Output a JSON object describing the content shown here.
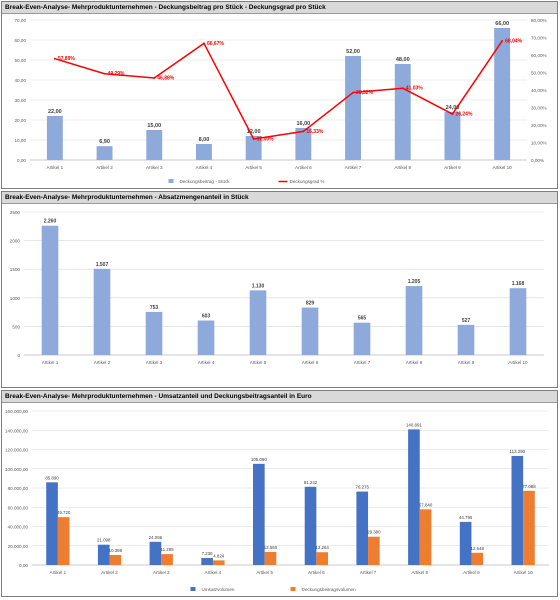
{
  "chart_data": [
    {
      "type": "bar",
      "title": "Break-Even-Analyse- Mehrproduktunternehmen - Deckungsbeitrag pro Stück - Deckungsgrad pro Stück",
      "categories": [
        "Artikel 1",
        "Artikel 2",
        "Artikel 3",
        "Artikel 4",
        "Artikel 5",
        "Artikel 6",
        "Artikel 7",
        "Artikel 8",
        "Artikel 9",
        "Artikel 10"
      ],
      "y_ticks": [
        "0,00",
        "10,00",
        "20,00",
        "30,00",
        "40,00",
        "50,00",
        "60,00",
        "70,00"
      ],
      "y2_ticks": [
        "0,00%",
        "10,00%",
        "20,00%",
        "30,00%",
        "40,00%",
        "50,00%",
        "60,00%",
        "70,00%",
        "80,00%"
      ],
      "ylim": [
        0,
        70
      ],
      "y2lim": [
        0,
        80
      ],
      "series": [
        {
          "name": "Deckungsbeitrag - Stück",
          "type": "bar",
          "color": "#8eaadb",
          "values": [
            22,
            6.9,
            15,
            8,
            12,
            16,
            52,
            48,
            24,
            66
          ],
          "labels": [
            "22,00",
            "6,90",
            "15,00",
            "8,00",
            "12,00",
            "16,00",
            "52,00",
            "48,00",
            "24,00",
            "66,00"
          ]
        },
        {
          "name": "Deckungsgrad %",
          "type": "line",
          "color": "#ff0000",
          "values": [
            57.89,
            49.29,
            46.88,
            66.67,
            12,
            16.33,
            38.52,
            41.03,
            26.24,
            68.04
          ],
          "labels": [
            "57,89%",
            "49,29%",
            "46,88%",
            "66,67%",
            "12,00%",
            "16,33%",
            "38,52%",
            "41,03%",
            "26,24%",
            "68,04%"
          ]
        }
      ]
    },
    {
      "type": "bar",
      "title": "Break-Even-Analyse- Mehrproduktunternehmen - Absatzmengenanteil in Stück",
      "categories": [
        "Artikel 1",
        "Artikel 2",
        "Artikel 3",
        "Artikel 4",
        "Artikel 5",
        "Artikel 6",
        "Artikel 7",
        "Artikel 8",
        "Artikel 9",
        "Artikel 10"
      ],
      "y_ticks": [
        "0",
        "500",
        "1000",
        "1500",
        "2000",
        "2500"
      ],
      "ylim": [
        0,
        2500
      ],
      "series": [
        {
          "type": "bar",
          "color": "#8eaadb",
          "values": [
            2260,
            1507,
            753,
            603,
            1130,
            829,
            565,
            1205,
            527,
            1168
          ],
          "labels": [
            "2.260",
            "1.507",
            "753",
            "603",
            "1.130",
            "829",
            "565",
            "1.205",
            "527",
            "1.168"
          ]
        }
      ]
    },
    {
      "type": "bar",
      "title": "Break-Even-Analyse- Mehrproduktunternehmen - Umsatzanteil und Deckungsbeitragsanteil in Euro",
      "categories": [
        "Artikel 1",
        "Artikel 2",
        "Artikel 3",
        "Artikel 4",
        "Artikel 5",
        "Artikel 6",
        "Artikel 7",
        "Artikel 8",
        "Artikel 9",
        "Artikel 10"
      ],
      "y_ticks": [
        "0,00",
        "20.000,00",
        "40.000,00",
        "60.000,00",
        "80.000,00",
        "100.000,00",
        "120.000,00",
        "140.000,00",
        "160.000,00"
      ],
      "ylim": [
        0,
        160000
      ],
      "series": [
        {
          "name": "Umsatzvolumen",
          "type": "bar",
          "color": "#4472c4",
          "values": [
            85890,
            21098,
            24096,
            7236,
            105090,
            81242,
            76275,
            140891,
            44795,
            113290
          ],
          "labels": [
            "85.890",
            "21.098",
            "24.096",
            "7.236",
            "105.090",
            "81.242",
            "76.275",
            "140.891",
            "44.795",
            "113.290"
          ]
        },
        {
          "name": "Deckungsbeitragsvolumen",
          "type": "bar",
          "color": "#ed7d31",
          "values": [
            49720,
            10398,
            11295,
            4824,
            13560,
            13264,
            29380,
            57840,
            12648,
            77088
          ],
          "labels": [
            "49.720",
            "10.398",
            "11.295",
            "4.824",
            "13.560",
            "13.264",
            "29.380",
            "57.840",
            "12.648",
            "77.088"
          ]
        }
      ]
    }
  ]
}
